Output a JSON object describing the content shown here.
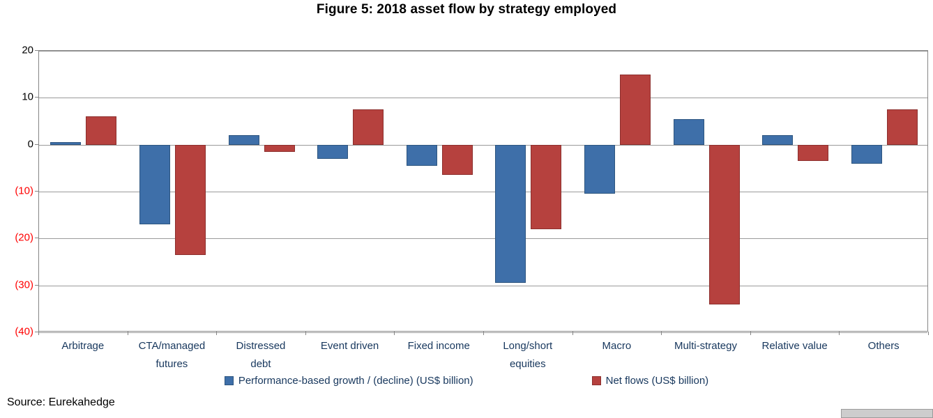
{
  "title": "Figure 5: 2018 asset flow by strategy employed",
  "source": "Source: Eurekahedge",
  "chart_data": {
    "type": "bar",
    "categories": [
      "Arbitrage",
      "CTA/managed futures",
      "Distressed debt",
      "Event driven",
      "Fixed income",
      "Long/short equities",
      "Macro",
      "Multi-strategy",
      "Relative value",
      "Others"
    ],
    "series": [
      {
        "name": "Performance-based growth / (decline) (US$ billion)",
        "color": "#3E6FA9",
        "border_color": "#2D557F",
        "values": [
          0.5,
          -17,
          2,
          -3,
          -4.5,
          -29.5,
          -10.5,
          5.5,
          2,
          -4
        ]
      },
      {
        "name": "Net flows (US$ billion)",
        "color": "#B6413E",
        "border_color": "#8C2F2D",
        "values": [
          6,
          -23.5,
          -1.5,
          7.5,
          -6.5,
          -18,
          15,
          -34,
          -3.5,
          7.5
        ]
      }
    ],
    "title": "Figure 5: 2018 asset flow by strategy employed",
    "xlabel": "",
    "ylabel": "",
    "ylim": [
      -40,
      20
    ],
    "yticks": [
      20,
      10,
      0,
      -10,
      -20,
      -30,
      -40
    ],
    "tick_color_positive": "#000000",
    "tick_color_negative": "#FF0000",
    "grid": true,
    "legend_position": "bottom"
  }
}
